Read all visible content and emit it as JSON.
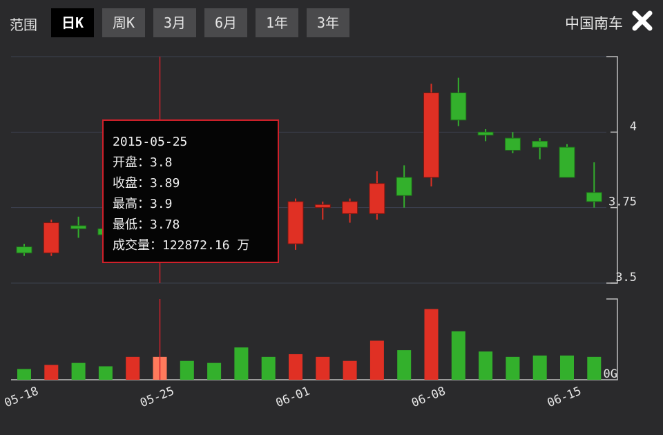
{
  "header": {
    "range_label": "范围",
    "range_buttons": [
      "日K",
      "周K",
      "3月",
      "6月",
      "1年",
      "3年"
    ],
    "active_range": "日K",
    "stock_name": "中国南车"
  },
  "colors": {
    "up": "#e03024",
    "down": "#33b02c",
    "highlight": "#ff7a5c",
    "crosshair": "#d0202a",
    "grid": "#3c4250",
    "axis": "#c0c0c0"
  },
  "tooltip": {
    "date": "2015-05-25",
    "open_label": "开盘：",
    "open": "3.8",
    "close_label": "收盘：",
    "close": "3.89",
    "high_label": "最高：",
    "high": "3.9",
    "low_label": "最低：",
    "low": "3.78",
    "volume_label": "成交量：",
    "volume": "122872.16",
    "volume_unit": "万"
  },
  "chart_data": {
    "type": "candlestick",
    "x_tick_labels": [
      "05-18",
      "05-25",
      "06-01",
      "06-08",
      "06-15"
    ],
    "x_tick_dates": [
      "2015-05-18",
      "2015-05-25",
      "2015-06-01",
      "2015-06-08",
      "2015-06-15"
    ],
    "y_tick_labels": [
      "4",
      "3.75",
      "3.5"
    ],
    "y_ticks": [
      4,
      3.75,
      3.5
    ],
    "ylim": [
      3.5,
      4.25
    ],
    "volume_tick_label": "0G",
    "highlight_date": "2015-05-25",
    "dates": [
      "2015-05-18",
      "2015-05-19",
      "2015-05-20",
      "2015-05-21",
      "2015-05-22",
      "2015-05-25",
      "2015-05-26",
      "2015-05-27",
      "2015-05-28",
      "2015-05-29",
      "2015-06-01",
      "2015-06-02",
      "2015-06-03",
      "2015-06-04",
      "2015-06-05",
      "2015-06-08",
      "2015-06-09",
      "2015-06-10",
      "2015-06-11",
      "2015-06-12",
      "2015-06-15",
      "2015-06-16"
    ],
    "open": [
      3.62,
      3.6,
      3.69,
      3.68,
      3.71,
      3.8,
      3.89,
      3.88,
      3.85,
      3.66,
      3.63,
      3.75,
      3.73,
      3.73,
      3.85,
      3.85,
      4.13,
      4.0,
      3.98,
      3.97,
      3.95,
      3.8
    ],
    "close": [
      3.6,
      3.7,
      3.68,
      3.66,
      3.73,
      3.89,
      3.86,
      3.86,
      3.66,
      3.63,
      3.77,
      3.76,
      3.77,
      3.83,
      3.79,
      4.13,
      4.04,
      3.99,
      3.94,
      3.95,
      3.85,
      3.77
    ],
    "high": [
      3.63,
      3.71,
      3.72,
      3.69,
      3.76,
      3.9,
      3.91,
      3.89,
      3.87,
      3.69,
      3.78,
      3.77,
      3.78,
      3.87,
      3.89,
      4.16,
      4.18,
      4.01,
      4.0,
      3.98,
      3.96,
      3.9
    ],
    "low": [
      3.59,
      3.59,
      3.65,
      3.64,
      3.68,
      3.78,
      3.83,
      3.84,
      3.64,
      3.58,
      3.61,
      3.71,
      3.7,
      3.71,
      3.75,
      3.82,
      4.02,
      3.97,
      3.93,
      3.91,
      3.85,
      3.75
    ],
    "volume": [
      16,
      22,
      25,
      20,
      34,
      34,
      28,
      25,
      48,
      34,
      38,
      34,
      28,
      58,
      44,
      105,
      72,
      42,
      34,
      36,
      36,
      34
    ],
    "volume_max": 120
  }
}
